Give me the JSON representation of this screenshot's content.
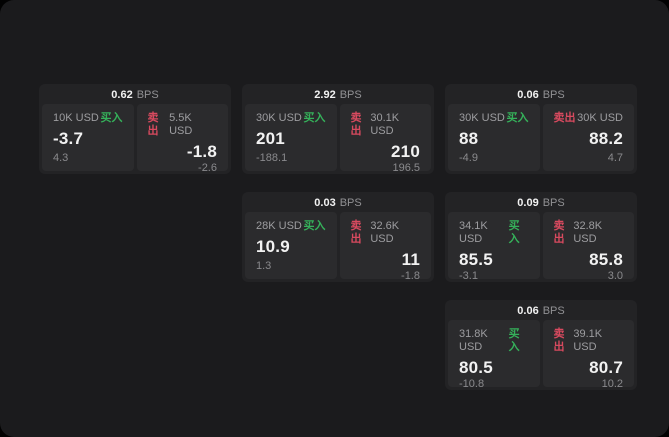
{
  "page": {
    "background": "#020202",
    "surface_color": "#1b1b1d"
  },
  "colors": {
    "buy_green": "#35b15a",
    "sell_red": "#d84a5f",
    "card_bg": "#232325",
    "panel_bg": "#2b2b2d"
  },
  "labels": {
    "bps": "BPS",
    "buy": "买入",
    "sell": "卖出"
  },
  "cards": [
    {
      "col": 1,
      "row": 1,
      "bps": "0.62",
      "buy": {
        "amount": "10K USD",
        "price": "-3.7",
        "sub": "4.3"
      },
      "sell": {
        "amount": "5.5K USD",
        "price": "-1.8",
        "sub": "-2.6"
      }
    },
    {
      "col": 2,
      "row": 1,
      "bps": "2.92",
      "buy": {
        "amount": "30K USD",
        "price": "201",
        "sub": "-188.1"
      },
      "sell": {
        "amount": "30.1K USD",
        "price": "210",
        "sub": "196.5"
      }
    },
    {
      "col": 3,
      "row": 1,
      "bps": "0.06",
      "buy": {
        "amount": "30K USD",
        "price": "88",
        "sub": "-4.9"
      },
      "sell": {
        "amount": "30K USD",
        "price": "88.2",
        "sub": "4.7"
      }
    },
    {
      "col": 2,
      "row": 2,
      "bps": "0.03",
      "buy": {
        "amount": "28K USD",
        "price": "10.9",
        "sub": "1.3"
      },
      "sell": {
        "amount": "32.6K USD",
        "price": "11",
        "sub": "-1.8"
      }
    },
    {
      "col": 3,
      "row": 2,
      "bps": "0.09",
      "buy": {
        "amount": "34.1K USD",
        "price": "85.5",
        "sub": "-3.1"
      },
      "sell": {
        "amount": "32.8K USD",
        "price": "85.8",
        "sub": "3.0"
      }
    },
    {
      "col": 3,
      "row": 3,
      "bps": "0.06",
      "buy": {
        "amount": "31.8K USD",
        "price": "80.5",
        "sub": "-10.8"
      },
      "sell": {
        "amount": "39.1K USD",
        "price": "80.7",
        "sub": "10.2"
      }
    }
  ]
}
